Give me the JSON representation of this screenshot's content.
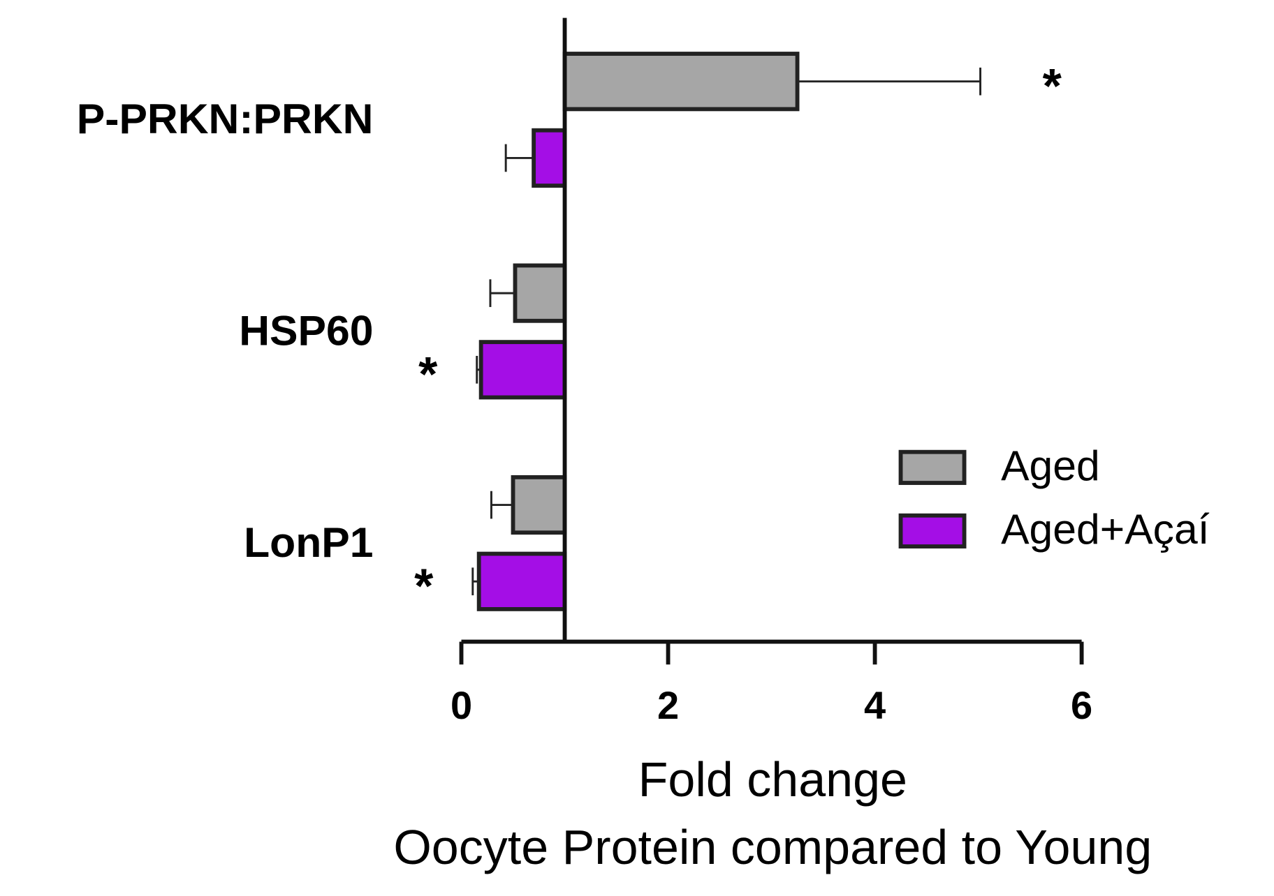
{
  "chart_data": {
    "type": "bar",
    "orientation": "horizontal",
    "baseline": 1,
    "categories": [
      "P-PRKN:PRKN",
      "HSP60",
      "LonP1"
    ],
    "series": [
      {
        "name": "Aged",
        "color": "#a6a6a6",
        "values": [
          3.25,
          0.52,
          0.5
        ],
        "errors": [
          1.77,
          0.24,
          0.21
        ],
        "significance": [
          "*",
          null,
          null
        ]
      },
      {
        "name": "Aged+Açaí",
        "color": "#a40ee6",
        "values": [
          0.7,
          0.19,
          0.17
        ],
        "errors": [
          0.27,
          0.04,
          0.06
        ],
        "significance": [
          null,
          "*",
          "*"
        ]
      }
    ],
    "xlabel": [
      "Fold change",
      "Oocyte Protein compared to Young"
    ],
    "xlim": [
      0,
      6
    ],
    "xticks": [
      0,
      2,
      4,
      6
    ],
    "grid": false,
    "legend": "right"
  }
}
